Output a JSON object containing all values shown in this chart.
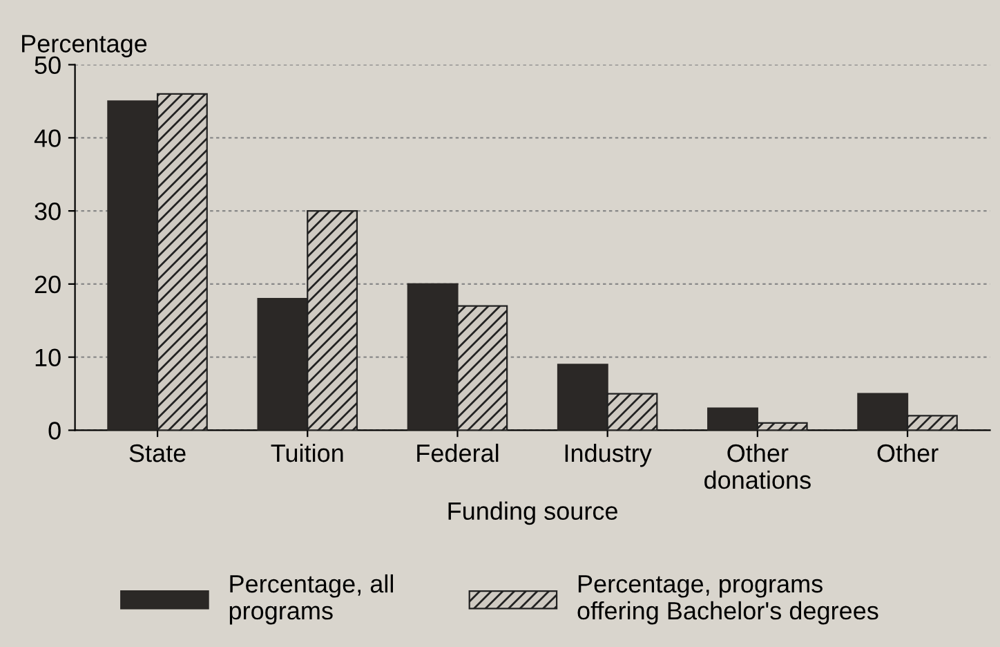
{
  "chart_data": {
    "type": "bar",
    "ylabel": "Percentage",
    "xlabel": "Funding source",
    "categories": [
      "State",
      "Tuition",
      "Federal",
      "Industry",
      "Other\ndonations",
      "Other"
    ],
    "series": [
      {
        "name": "Percentage, all\nprograms",
        "color": "#2b2826",
        "values": [
          45,
          18,
          20,
          9,
          3,
          5
        ]
      },
      {
        "name": "Percentage, programs\noffering Bachelor's degrees",
        "color": "#222222",
        "values": [
          46,
          30,
          17,
          5,
          1,
          2
        ]
      }
    ],
    "ylim": [
      0,
      50
    ],
    "yticks": [
      0,
      10,
      20,
      30,
      40,
      50
    ],
    "grid": "y",
    "legend": "bottom"
  }
}
